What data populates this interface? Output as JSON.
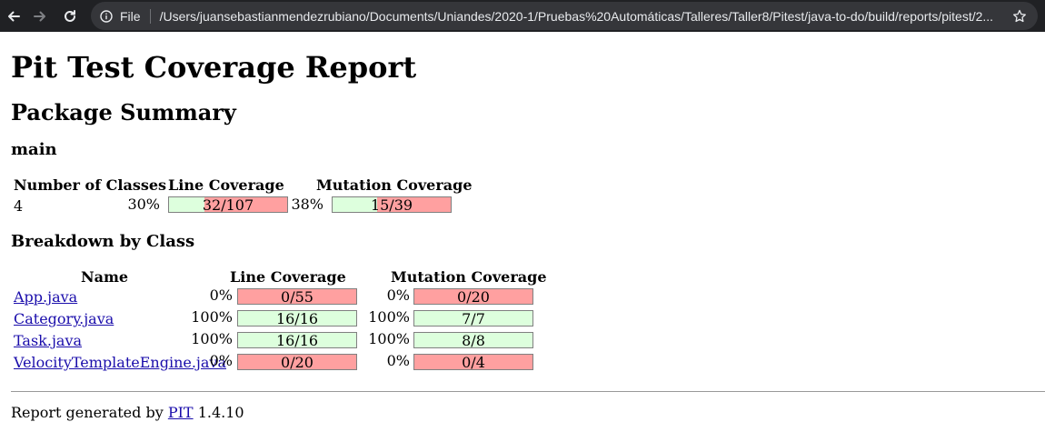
{
  "browser": {
    "file_label": "File",
    "url": "/Users/juansebastianmendezrubiano/Documents/Uniandes/2020-1/Pruebas%20Automáticas/Talleres/Taller8/Pitest/java-to-do/build/reports/pitest/2..."
  },
  "page": {
    "title": "Pit Test Coverage Report",
    "package_summary": "Package Summary",
    "package_name": "main",
    "breakdown_title": "Breakdown by Class"
  },
  "summary": {
    "headers": {
      "classes": "Number of Classes",
      "line": "Line Coverage",
      "mutation": "Mutation Coverage"
    },
    "classes": "4",
    "line_pct": "30%",
    "line_ratio": "32/107",
    "line_fill": 30,
    "mutation_pct": "38%",
    "mutation_ratio": "15/39",
    "mutation_fill": 38
  },
  "breakdown": {
    "headers": {
      "name": "Name",
      "line": "Line Coverage",
      "mutation": "Mutation Coverage"
    },
    "rows": [
      {
        "name": "App.java",
        "line_pct": "0%",
        "line_ratio": "0/55",
        "mutation_pct": "0%",
        "mutation_ratio": "0/20"
      },
      {
        "name": "Category.java",
        "line_pct": "100%",
        "line_ratio": "16/16",
        "mutation_pct": "100%",
        "mutation_ratio": "7/7"
      },
      {
        "name": "Task.java",
        "line_pct": "100%",
        "line_ratio": "16/16",
        "mutation_pct": "100%",
        "mutation_ratio": "8/8"
      },
      {
        "name": "VelocityTemplateEngine.java",
        "line_pct": "0%",
        "line_ratio": "0/20",
        "mutation_pct": "0%",
        "mutation_ratio": "0/4"
      }
    ]
  },
  "footer": {
    "prefix": "Report generated by",
    "link": "PIT",
    "version": "1.4.10"
  },
  "colors": {
    "covered": "#ddffdd",
    "uncovered": "#ffa0a0",
    "chrome": "#202124",
    "link": "#1a0dab"
  },
  "icons": {
    "back": "back-arrow-icon",
    "forward": "forward-arrow-icon",
    "reload": "reload-icon",
    "info": "info-icon",
    "star": "star-icon"
  }
}
